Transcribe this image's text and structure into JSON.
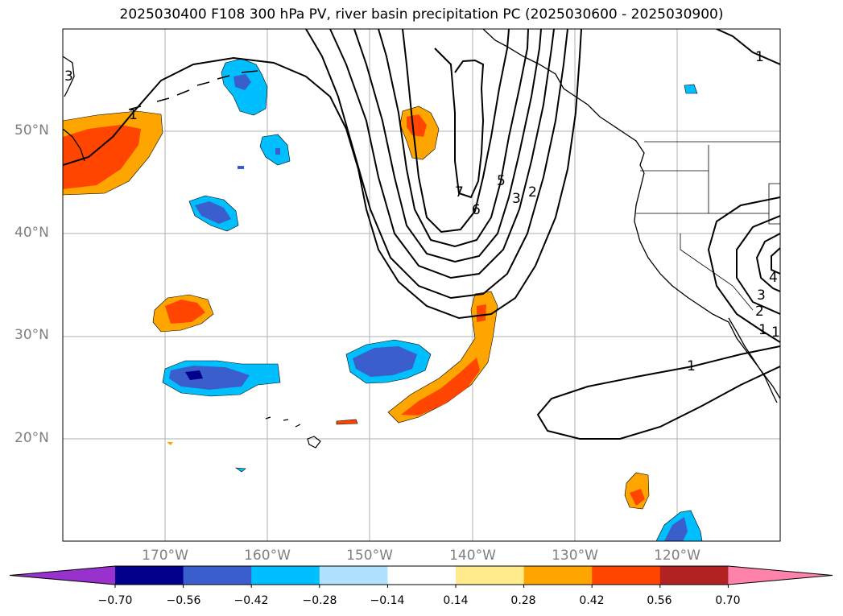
{
  "title": "2025030400 F108 300 hPa PV, river basin precipitation PC (2025030600 - 2025030900)",
  "latitude_labels": [
    "50°N",
    "40°N",
    "30°N",
    "20°N"
  ],
  "longitude_labels": [
    "170°W",
    "160°W",
    "150°W",
    "140°W",
    "130°W",
    "120°W"
  ],
  "contour_labels": [
    "1",
    "1",
    "3",
    "7",
    "6",
    "5",
    "3",
    "2",
    "1",
    "1",
    "3",
    "2",
    "1",
    "4"
  ],
  "colorbar": {
    "tick_labels": [
      "−0.70",
      "−0.56",
      "−0.42",
      "−0.28",
      "−0.14",
      "0.14",
      "0.28",
      "0.42",
      "0.56",
      "0.70"
    ],
    "colors": [
      "#9932cc",
      "#00008b",
      "#3a5fcd",
      "#00bfff",
      "#b0e2ff",
      "#ffffff",
      "#ffeb8b",
      "#ffa500",
      "#ff4500",
      "#b22222",
      "#ff82ab"
    ],
    "extend": "both"
  },
  "map": {
    "extent_lon": [
      -180,
      -110
    ],
    "extent_lat": [
      10,
      60
    ],
    "gridline_lons": [
      -170,
      -160,
      -150,
      -140,
      -130,
      -120
    ],
    "gridline_lats": [
      20,
      30,
      40,
      50
    ]
  }
}
